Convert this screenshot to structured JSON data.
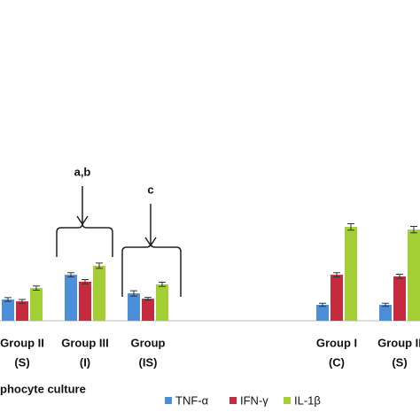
{
  "chart_data": {
    "type": "bar",
    "xlabel": "phocyte culture",
    "categories": [
      [
        "Group II",
        "(S)"
      ],
      [
        "Group III",
        "(I)"
      ],
      [
        "Group",
        "(IS)"
      ],
      null,
      null,
      [
        "Group I",
        "(C)"
      ],
      [
        "Group II",
        "(S)"
      ]
    ],
    "series": [
      {
        "name": "TNF-α",
        "color": "#4a8fd8",
        "values": [
          8,
          17.3,
          10.3,
          null,
          null,
          6,
          6
        ],
        "errors": [
          0.7,
          0.8,
          1,
          null,
          null,
          0.6,
          0.6
        ]
      },
      {
        "name": "IFN-γ",
        "color": "#c62a3e",
        "values": [
          7.3,
          14.7,
          8.3,
          null,
          null,
          17.3,
          16.7
        ],
        "errors": [
          0.7,
          0.8,
          0.5,
          null,
          null,
          0.8,
          0.8
        ]
      },
      {
        "name": "IL-1β",
        "color": "#a4cf34",
        "values": [
          12.3,
          20.7,
          13.7,
          null,
          null,
          35.3,
          34.3
        ],
        "errors": [
          0.8,
          1,
          0.8,
          null,
          null,
          1.2,
          1.2
        ]
      }
    ],
    "ylim": [
      0,
      100
    ],
    "annotations": [
      "a,b",
      "c"
    ]
  }
}
